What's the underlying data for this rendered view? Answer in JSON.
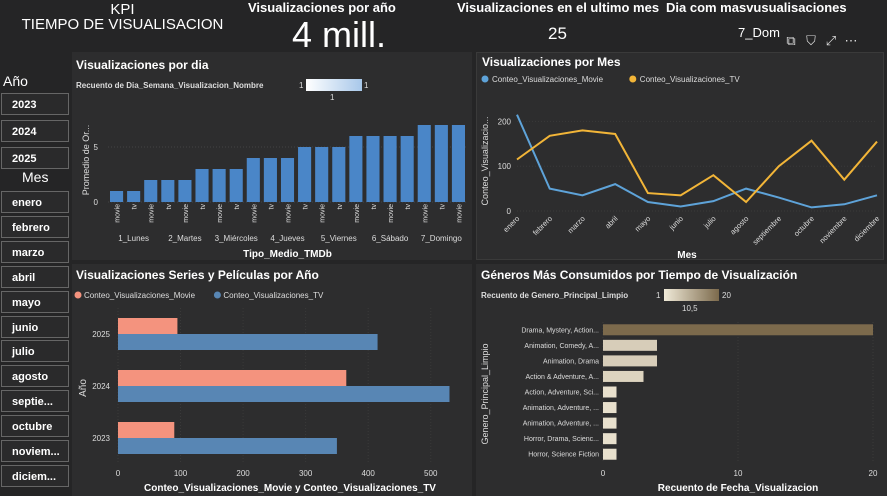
{
  "kpi": {
    "title1": "KPI",
    "title2": "TIEMPO DE VISUALISACION"
  },
  "cards": [
    {
      "label": "Visualizaciones por año",
      "value": "4 mill."
    },
    {
      "label": "Visualizaciones en el ultimo mes",
      "value": "25"
    },
    {
      "label": "Dia com masvusualisaciones",
      "value": "7_Dom"
    }
  ],
  "slicers": {
    "ano": {
      "header": "Año",
      "items": [
        "2023",
        "2024",
        "2025"
      ]
    },
    "mes": {
      "header": "Mes",
      "items": [
        "enero",
        "febrero",
        "marzo",
        "abril",
        "mayo",
        "junio",
        "julio",
        "agosto",
        "septie...",
        "octubre",
        "noviem...",
        "diciem..."
      ]
    }
  },
  "visual_icons": [
    "expand-icon",
    "filter-icon",
    "focus-icon",
    "more-icon"
  ],
  "chart_data": [
    {
      "type": "bar",
      "title": "Visualizaciones por dia",
      "legend_title": "Recuento de Dia_Semana_Visualizacion_Nombre",
      "legend_min": "1",
      "legend_max": "1",
      "legend_mid": "1",
      "xlabel": "Tipo_Medio_TMDb",
      "ylabel": "Promedio de Or...",
      "yticks": [
        "0",
        "5"
      ],
      "ylim": [
        0,
        8
      ],
      "groups": [
        "1_Lunes",
        "2_Martes",
        "3_Miércoles",
        "4_Jueves",
        "5_Viernes",
        "6_Sábado",
        "7_Domingo"
      ],
      "subcats": [
        "movie",
        "tv"
      ],
      "values": [
        1,
        1,
        2,
        2,
        2,
        3,
        3,
        3,
        4,
        4,
        4,
        5,
        5,
        5,
        6,
        6,
        6,
        6,
        7,
        7,
        7
      ],
      "color": "#4a86c8"
    },
    {
      "type": "line",
      "title": "Visualizaciones por Mes",
      "xlabel": "Mes",
      "ylabel": "Conteo_Visualizacio...",
      "categories": [
        "enero",
        "febrero",
        "marzo",
        "abril",
        "mayo",
        "junio",
        "julio",
        "agosto",
        "septiembre",
        "octubre",
        "noviembre",
        "diciembre"
      ],
      "yticks": [
        "0",
        "100",
        "200"
      ],
      "ylim": [
        0,
        230
      ],
      "legend_placement": "top-left",
      "series": [
        {
          "name": "Conteo_Visualizaciones_Movie",
          "color": "#5ea3d9",
          "values": [
            215,
            50,
            35,
            60,
            20,
            10,
            22,
            50,
            30,
            8,
            15,
            35
          ]
        },
        {
          "name": "Conteo_Visualizaciones_TV",
          "color": "#f2b538",
          "values": [
            115,
            168,
            180,
            172,
            40,
            35,
            80,
            20,
            100,
            157,
            70,
            155
          ]
        }
      ]
    },
    {
      "type": "bar",
      "orientation": "horizontal",
      "title": "Visualizaciones Series y Películas por Año",
      "xlabel": "Conteo_Visualizaciones_Movie y Conteo_Visualizaciones_TV",
      "ylabel": "Año",
      "categories": [
        "2025",
        "2024",
        "2023"
      ],
      "xticks": [
        "0",
        "100",
        "200",
        "300",
        "400",
        "500"
      ],
      "xlim": [
        0,
        550
      ],
      "legend_placement": "top-left",
      "series": [
        {
          "name": "Conteo_Visualizaciones_Movie",
          "color": "#f4937e",
          "values": [
            95,
            365,
            90
          ]
        },
        {
          "name": "Conteo_Visualizaciones_TV",
          "color": "#5886b4",
          "values": [
            415,
            530,
            350
          ]
        }
      ]
    },
    {
      "type": "bar",
      "orientation": "horizontal",
      "title": "Géneros Más Consumidos por Tiempo de Visualización",
      "legend_title": "Recuento de Genero_Principal_Limpio",
      "legend_min": "1",
      "legend_max": "20",
      "legend_mid": "10,5",
      "xlabel": "Recuento de Fecha_Visualizacion",
      "ylabel": "Genero_Principal_Limpio",
      "categories": [
        "Drama, Mystery, Action...",
        "Animation, Comedy, A...",
        "Animation, Drama",
        "Action & Adventure, A...",
        "Action, Adventure, Sci...",
        "Animation, Adventure, ...",
        "Animation, Adventure, ...",
        "Horror, Drama, Scienc...",
        "Horror, Science Fiction"
      ],
      "values": [
        20,
        4,
        4,
        3,
        1,
        1,
        1,
        1,
        1
      ],
      "xticks": [
        "0",
        "10",
        "20"
      ],
      "xlim": [
        0,
        20
      ]
    }
  ]
}
